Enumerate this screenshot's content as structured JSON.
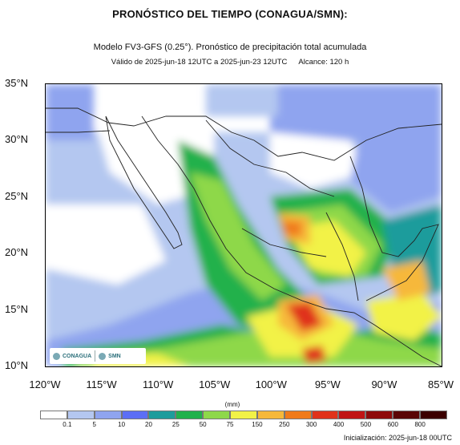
{
  "header": {
    "title": "PRONÓSTICO DEL TIEMPO (CONAGUA/SMN):",
    "subtitle": "Modelo FV3-GFS (0.25°). Pronóstico de precipitación total acumulada",
    "validity": "Válido de 2025-jun-18 12UTC a 2025-jun-23 12UTC",
    "range": "Alcance: 120 h"
  },
  "map": {
    "lat_labels": [
      "35°N",
      "30°N",
      "25°N",
      "20°N",
      "15°N",
      "10°N"
    ],
    "lon_labels": [
      "120°W",
      "115°W",
      "110°W",
      "105°W",
      "100°W",
      "95°W",
      "90°W",
      "85°W"
    ],
    "extent": {
      "lon_min": -120,
      "lon_max": -85,
      "lat_min": 10,
      "lat_max": 35
    }
  },
  "logos": {
    "left": "CONAGUA",
    "right": "SMN"
  },
  "colorbar": {
    "units": "(mm)",
    "labels": [
      "0.1",
      "5",
      "10",
      "20",
      "25",
      "50",
      "75",
      "150",
      "250",
      "300",
      "400",
      "500",
      "600",
      "800"
    ],
    "colors": [
      "#ffffff",
      "#b4c7f0",
      "#8fa4ef",
      "#5c6ef5",
      "#1e9c9c",
      "#22b14c",
      "#8ed84a",
      "#f2f247",
      "#f6b83a",
      "#f07a1a",
      "#e0321a",
      "#c01414",
      "#8e0a0a",
      "#5a0606",
      "#3b0000"
    ]
  },
  "footer": {
    "init": "Inicialización: 2025-jun-18 00UTC"
  }
}
